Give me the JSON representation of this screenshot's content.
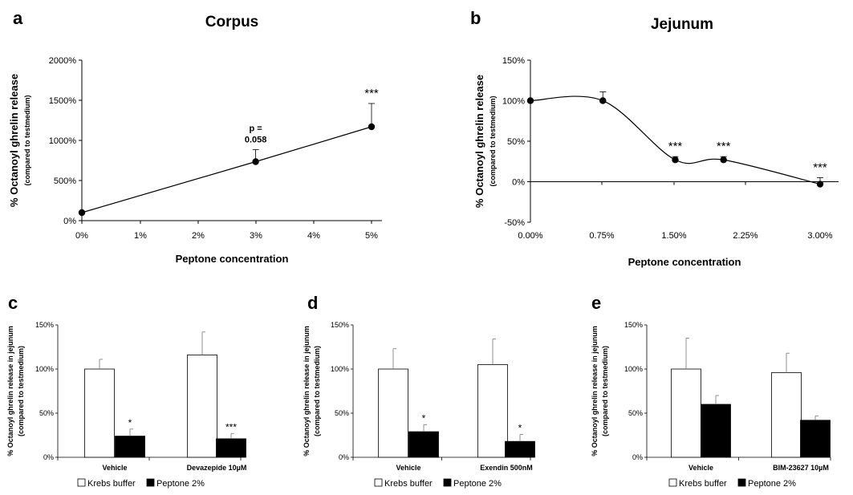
{
  "chart_data": [
    {
      "id": "a",
      "panel_letter": "a",
      "type": "line",
      "title": "Corpus",
      "xlabel": "Peptone concentration",
      "ylabel": "% Octanoyl ghrelin release",
      "ylabel_sub": "(compared to testmedium)",
      "x_ticks": [
        "0%",
        "1%",
        "2%",
        "3%",
        "4%",
        "5%"
      ],
      "y_ticks": [
        "0%",
        "500%",
        "1000%",
        "1500%",
        "2000%"
      ],
      "xlim": [
        0,
        5.2
      ],
      "ylim": [
        0,
        2000
      ],
      "x": [
        0,
        3,
        5
      ],
      "y": [
        100,
        735,
        1170
      ],
      "error": [
        0,
        150,
        290
      ],
      "significance": [
        "",
        "",
        "***"
      ],
      "annotation": {
        "text_line1": "p =",
        "text_line2": "0.058",
        "at_x": 3
      }
    },
    {
      "id": "b",
      "panel_letter": "b",
      "type": "line",
      "title": "Jejunum",
      "xlabel": "Peptone concentration",
      "ylabel": "% Octanoyl ghrelin release",
      "ylabel_sub": "(compared to testmedium)",
      "x_ticks": [
        "0.00%",
        "0.75%",
        "1.50%",
        "2.25%",
        "3.00%"
      ],
      "y_ticks": [
        "-50%",
        "0%",
        "50%",
        "100%",
        "150%"
      ],
      "xlim": [
        0,
        3.2
      ],
      "ylim": [
        -50,
        150
      ],
      "x": [
        0,
        0.75,
        1.5,
        2,
        3
      ],
      "y": [
        100,
        100,
        27,
        27,
        -3
      ],
      "error": [
        0,
        11,
        4,
        4,
        8
      ],
      "significance": [
        "",
        "",
        "***",
        "***",
        "***"
      ],
      "smooth": true
    },
    {
      "id": "c",
      "panel_letter": "c",
      "type": "bar",
      "ylabel": "% Octanoyl ghrelin release in jejunum",
      "ylabel_sub": "(compared to testmedium)",
      "y_ticks": [
        "0%",
        "50%",
        "100%",
        "150%"
      ],
      "ylim": [
        0,
        150
      ],
      "categories": [
        "Vehicle",
        "Devazepide 10µM"
      ],
      "series": [
        {
          "name": "Krebs buffer",
          "color": "#ffffff",
          "values": [
            100,
            116
          ],
          "errors": [
            11,
            26
          ],
          "significance": [
            "",
            ""
          ]
        },
        {
          "name": "Peptone 2%",
          "color": "#000000",
          "values": [
            24,
            21
          ],
          "errors": [
            8,
            6
          ],
          "significance": [
            "*",
            "***"
          ]
        }
      ]
    },
    {
      "id": "d",
      "panel_letter": "d",
      "type": "bar",
      "ylabel": "% Octanoyl ghrelin release in jejunum",
      "ylabel_sub": "(compared to testmedium)",
      "y_ticks": [
        "0%",
        "50%",
        "100%",
        "150%"
      ],
      "ylim": [
        0,
        150
      ],
      "categories": [
        "Vehicle",
        "Exendin 500nM"
      ],
      "series": [
        {
          "name": "Krebs buffer",
          "color": "#ffffff",
          "values": [
            100,
            105
          ],
          "errors": [
            23,
            29
          ],
          "significance": [
            "",
            ""
          ]
        },
        {
          "name": "Peptone 2%",
          "color": "#000000",
          "values": [
            29,
            18
          ],
          "errors": [
            8,
            8
          ],
          "significance": [
            "*",
            "*"
          ]
        }
      ]
    },
    {
      "id": "e",
      "panel_letter": "e",
      "type": "bar",
      "ylabel": "% Octanoyl ghrelin release in jejunum",
      "ylabel_sub": "(compared to testmedium)",
      "y_ticks": [
        "0%",
        "50%",
        "100%",
        "150%"
      ],
      "ylim": [
        0,
        150
      ],
      "categories": [
        "Vehicle",
        "BIM-23627 10µM"
      ],
      "series": [
        {
          "name": "Krebs buffer",
          "color": "#ffffff",
          "values": [
            100,
            96
          ],
          "errors": [
            35,
            22
          ],
          "significance": [
            "",
            ""
          ]
        },
        {
          "name": "Peptone 2%",
          "color": "#000000",
          "values": [
            60,
            42
          ],
          "errors": [
            10,
            5
          ],
          "significance": [
            "",
            ""
          ]
        }
      ]
    }
  ]
}
